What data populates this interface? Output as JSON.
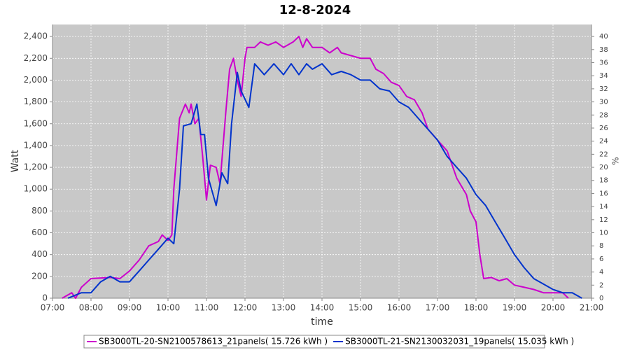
{
  "chart_data": {
    "type": "line",
    "title": "12-8-2024",
    "x_label": "time",
    "y_label": "Watt",
    "y2_label": "%",
    "xlim": [
      7,
      21
    ],
    "xticks": [
      {
        "value": 7,
        "label": "07:00"
      },
      {
        "value": 8,
        "label": "08:00"
      },
      {
        "value": 9,
        "label": "09:00"
      },
      {
        "value": 10,
        "label": "10:00"
      },
      {
        "value": 11,
        "label": "11:00"
      },
      {
        "value": 12,
        "label": "12:00"
      },
      {
        "value": 13,
        "label": "13:00"
      },
      {
        "value": 14,
        "label": "14:00"
      },
      {
        "value": 15,
        "label": "15:00"
      },
      {
        "value": 16,
        "label": "16:00"
      },
      {
        "value": 17,
        "label": "17:00"
      },
      {
        "value": 18,
        "label": "18:00"
      },
      {
        "value": 19,
        "label": "19:00"
      },
      {
        "value": 20,
        "label": "20:00"
      },
      {
        "value": 21,
        "label": "21:00"
      }
    ],
    "ylim": [
      0,
      2510
    ],
    "yticks": [
      0,
      200,
      400,
      600,
      800,
      {
        "value": 1000,
        "label": "1,000"
      },
      {
        "value": 1200,
        "label": "1,200"
      },
      {
        "value": 1400,
        "label": "1,400"
      },
      {
        "value": 1600,
        "label": "1,600"
      },
      {
        "value": 1800,
        "label": "1,800"
      },
      {
        "value": 2000,
        "label": "2,000"
      },
      {
        "value": 2200,
        "label": "2,200"
      },
      {
        "value": 2400,
        "label": "2,400"
      }
    ],
    "y2lim": [
      0,
      41.83
    ],
    "y2ticks": [
      0,
      2,
      4,
      6,
      8,
      10,
      12,
      14,
      16,
      18,
      20,
      22,
      24,
      26,
      28,
      30,
      32,
      34,
      36,
      38,
      40
    ],
    "grid": true,
    "legend": "bottom",
    "series": [
      {
        "name": "SB3000TL-20-SN2100578613_21panels( 15.726 kWh )",
        "color": "#cc00cc",
        "x": [
          7.25,
          7.5,
          7.6,
          7.75,
          8.0,
          8.5,
          8.75,
          9.0,
          9.25,
          9.5,
          9.75,
          9.85,
          10.0,
          10.1,
          10.15,
          10.3,
          10.45,
          10.55,
          10.6,
          10.7,
          10.8,
          10.9,
          11.0,
          11.1,
          11.25,
          11.35,
          11.5,
          11.6,
          11.7,
          11.8,
          11.9,
          12.0,
          12.05,
          12.25,
          12.4,
          12.6,
          12.8,
          13.0,
          13.25,
          13.4,
          13.5,
          13.6,
          13.75,
          14.0,
          14.2,
          14.4,
          14.5,
          15.0,
          15.25,
          15.4,
          15.6,
          15.8,
          16.0,
          16.2,
          16.4,
          16.6,
          16.75,
          17.0,
          17.25,
          17.5,
          17.75,
          17.85,
          18.0,
          18.1,
          18.2,
          18.4,
          18.6,
          18.8,
          19.0,
          19.25,
          19.5,
          19.75,
          20.0,
          20.25,
          20.4
        ],
        "values": [
          0,
          50,
          0,
          100,
          180,
          190,
          180,
          250,
          350,
          480,
          520,
          580,
          530,
          580,
          1000,
          1650,
          1780,
          1700,
          1780,
          1600,
          1650,
          1300,
          900,
          1220,
          1200,
          1050,
          1700,
          2100,
          2200,
          2000,
          1850,
          2200,
          2300,
          2300,
          2350,
          2320,
          2350,
          2300,
          2350,
          2400,
          2300,
          2380,
          2300,
          2300,
          2250,
          2300,
          2250,
          2200,
          2200,
          2100,
          2060,
          1980,
          1950,
          1850,
          1820,
          1700,
          1550,
          1450,
          1350,
          1100,
          950,
          800,
          700,
          400,
          180,
          190,
          160,
          180,
          120,
          100,
          80,
          50,
          50,
          50,
          0
        ]
      },
      {
        "name": "SB3000TL-21-SN2130032031_19panels( 15.035 kWh )",
        "color": "#0033cc",
        "x": [
          7.4,
          7.75,
          8.0,
          8.25,
          8.5,
          8.75,
          9.0,
          9.25,
          9.5,
          9.75,
          10.0,
          10.15,
          10.3,
          10.4,
          10.6,
          10.75,
          10.85,
          10.95,
          11.05,
          11.25,
          11.4,
          11.55,
          11.65,
          11.8,
          11.9,
          12.1,
          12.25,
          12.5,
          12.75,
          13.0,
          13.2,
          13.4,
          13.6,
          13.75,
          14.0,
          14.25,
          14.5,
          14.75,
          15.0,
          15.25,
          15.5,
          15.75,
          16.0,
          16.25,
          16.5,
          16.75,
          17.0,
          17.25,
          17.5,
          17.75,
          18.0,
          18.25,
          18.5,
          18.75,
          19.0,
          19.25,
          19.5,
          19.75,
          20.0,
          20.25,
          20.5,
          20.75
        ],
        "values": [
          0,
          50,
          50,
          150,
          200,
          150,
          150,
          250,
          350,
          450,
          550,
          500,
          1000,
          1580,
          1600,
          1780,
          1500,
          1500,
          1100,
          850,
          1150,
          1050,
          1600,
          2070,
          1900,
          1750,
          2150,
          2050,
          2150,
          2050,
          2150,
          2050,
          2150,
          2100,
          2150,
          2050,
          2080,
          2050,
          2000,
          2000,
          1920,
          1900,
          1800,
          1750,
          1650,
          1550,
          1450,
          1300,
          1200,
          1100,
          950,
          850,
          700,
          550,
          400,
          280,
          180,
          130,
          80,
          50,
          50,
          0
        ]
      }
    ]
  }
}
